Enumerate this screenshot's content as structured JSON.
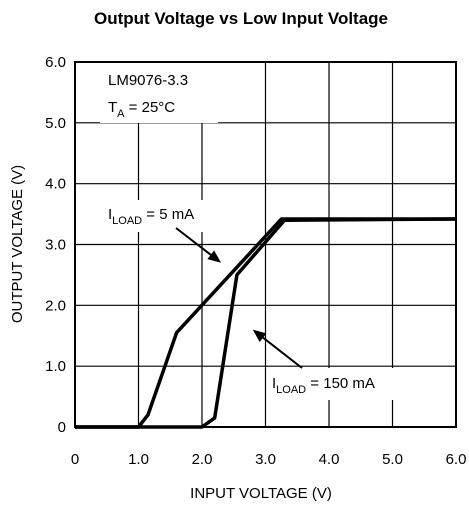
{
  "chart_data": {
    "type": "line",
    "title": "Output Voltage vs Low Input Voltage",
    "xlabel": "INPUT VOLTAGE (V)",
    "ylabel": "OUTPUT VOLTAGE (V)",
    "xlim": [
      0,
      6
    ],
    "ylim": [
      0,
      6
    ],
    "x_ticks": [
      "0",
      "1.0",
      "2.0",
      "3.0",
      "4.0",
      "5.0",
      "6.0"
    ],
    "y_ticks": [
      "0",
      "1.0",
      "2.0",
      "3.0",
      "4.0",
      "5.0",
      "6.0"
    ],
    "grid": true,
    "series": [
      {
        "name": "ILOAD = 5 mA",
        "points": [
          [
            0,
            0
          ],
          [
            1.0,
            0
          ],
          [
            1.15,
            0.2
          ],
          [
            1.6,
            1.55
          ],
          [
            3.25,
            3.42
          ],
          [
            6.0,
            3.42
          ]
        ]
      },
      {
        "name": "ILOAD = 150 mA",
        "points": [
          [
            0,
            0
          ],
          [
            2.0,
            0
          ],
          [
            2.2,
            0.15
          ],
          [
            2.55,
            2.5
          ],
          [
            3.3,
            3.4
          ],
          [
            6.0,
            3.42
          ]
        ]
      }
    ],
    "annotations": {
      "device": "LM9076-3.3",
      "temp_main": "T",
      "temp_sub": "A",
      "temp_rest": " = 25°C",
      "iload5_main": "I",
      "iload5_sub": "LOAD",
      "iload5_rest": " = 5 mA",
      "iload150_main": "I",
      "iload150_sub": "LOAD",
      "iload150_rest": " = 150 mA"
    }
  }
}
